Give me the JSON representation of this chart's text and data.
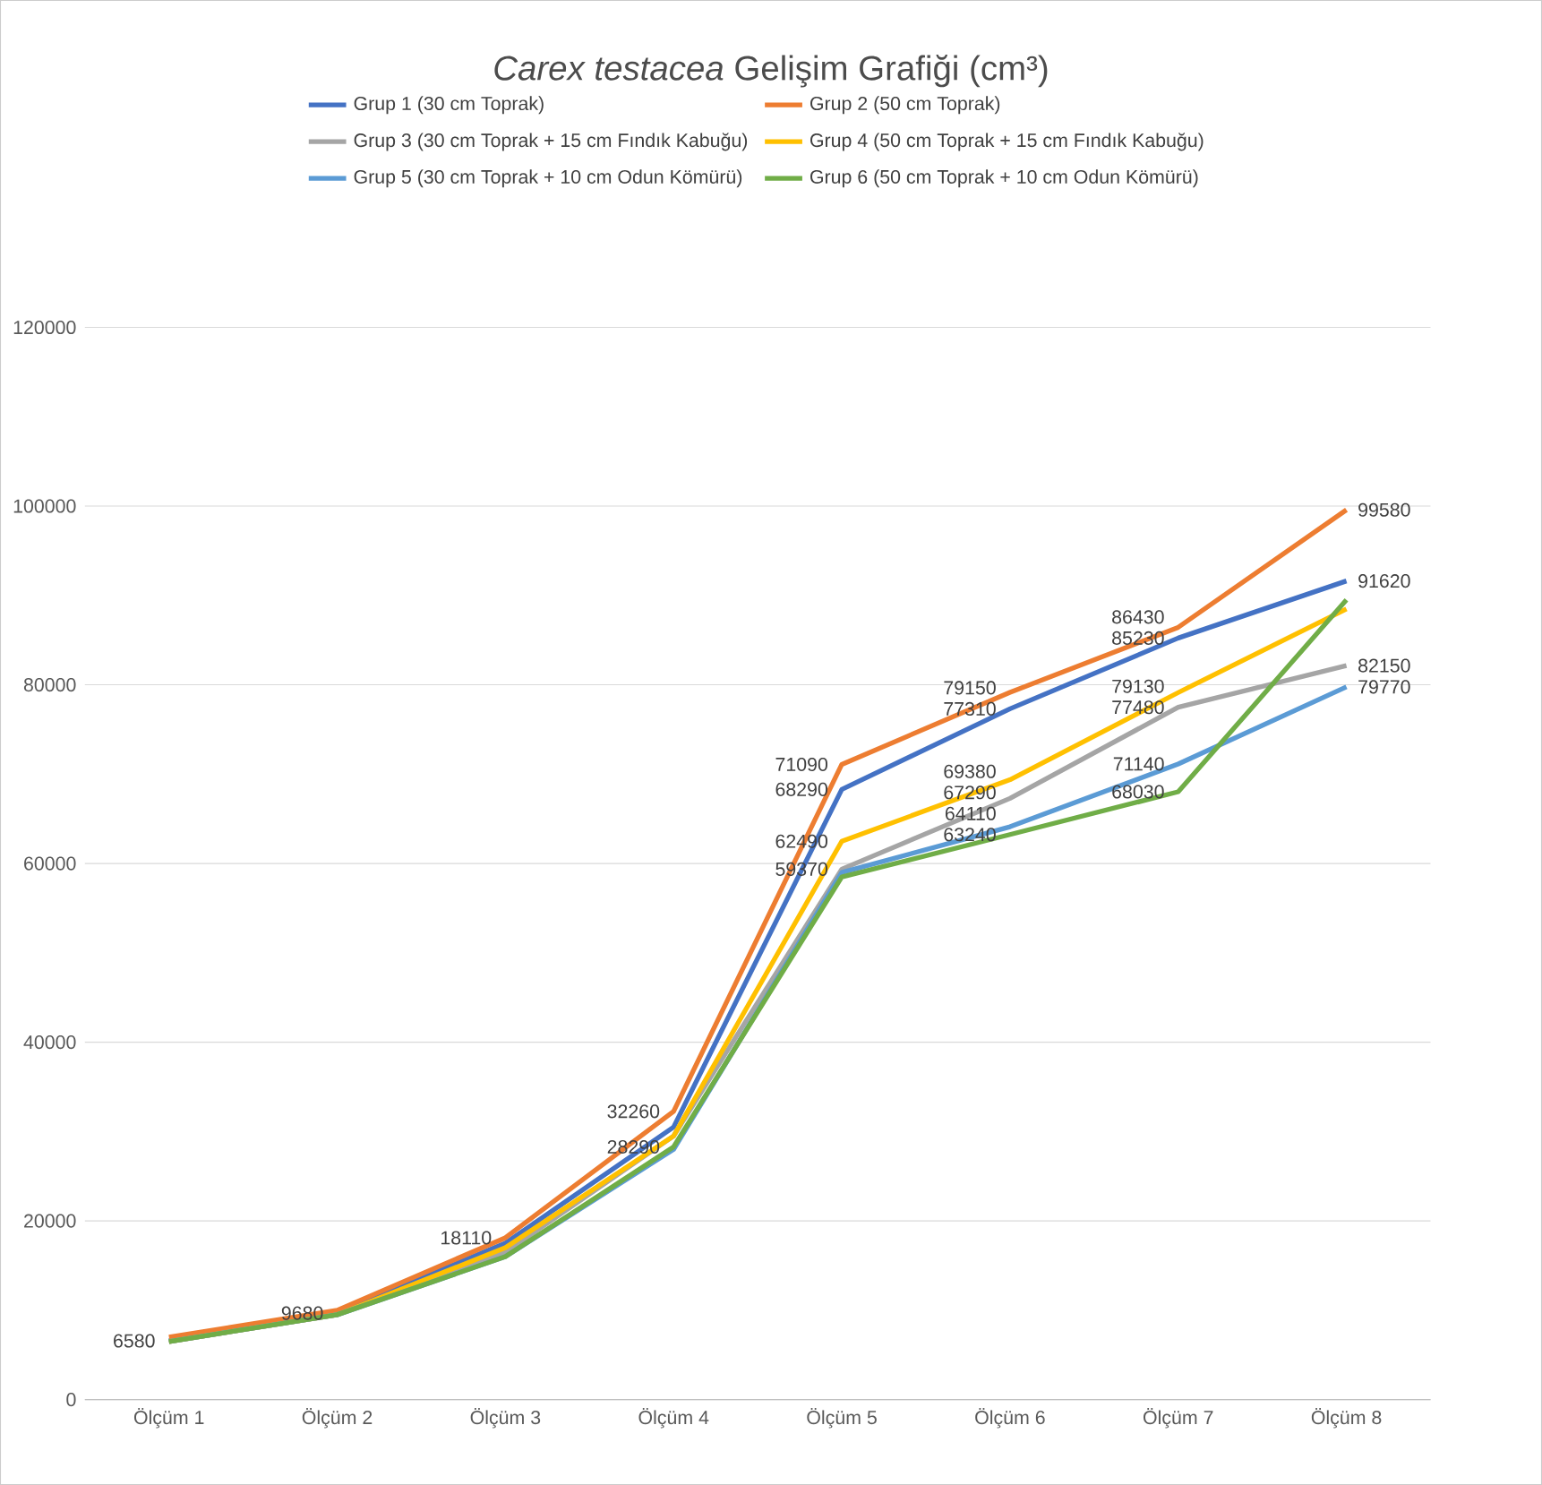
{
  "chart_data": {
    "type": "line",
    "title": "*Carex testacea* Gelişim Grafiği (cm³)",
    "categories": [
      "Ölçüm 1",
      "Ölçüm 2",
      "Ölçüm 3",
      "Ölçüm 4",
      "Ölçüm 5",
      "Ölçüm 6",
      "Ölçüm 7",
      "Ölçüm 8"
    ],
    "series": [
      {
        "name": "Grup 1 (30 cm Toprak)",
        "color": "#4472c4",
        "values": [
          6580,
          9680,
          17500,
          30500,
          68290,
          77310,
          85230,
          91620
        ],
        "value_labels": [
          "6580",
          "9680",
          null,
          null,
          "68290",
          "77310",
          "85230",
          "91620"
        ]
      },
      {
        "name": "Grup 2 (50 cm Toprak)",
        "color": "#ed7d31",
        "values": [
          7000,
          10000,
          18110,
          32260,
          71090,
          79150,
          86430,
          99580
        ],
        "value_labels": [
          null,
          null,
          "18110",
          "32260",
          "71090",
          "79150",
          "86430",
          "99580"
        ]
      },
      {
        "name": "Grup 3 (30 cm Toprak + 15 cm Fındık Kabuğu)",
        "color": "#a5a5a5",
        "values": [
          6500,
          9500,
          16500,
          29500,
          59370,
          67290,
          77480,
          82150
        ],
        "value_labels": [
          null,
          null,
          null,
          null,
          "59370",
          "67290",
          "77480",
          "82150"
        ]
      },
      {
        "name": "Grup 4 (50 cm Toprak + 15 cm Fındık Kabuğu)",
        "color": "#ffc000",
        "values": [
          6500,
          9500,
          17000,
          29500,
          62490,
          69380,
          79130,
          88500
        ],
        "value_labels": [
          null,
          null,
          null,
          null,
          "62490",
          "69380",
          "79130",
          null
        ]
      },
      {
        "name": "Grup 5 (30 cm Toprak + 10 cm Odun Kömürü)",
        "color": "#5b9bd5",
        "values": [
          6500,
          9500,
          16000,
          28000,
          59000,
          64110,
          71140,
          79770
        ],
        "value_labels": [
          null,
          null,
          null,
          null,
          null,
          "64110",
          "71140",
          "79770"
        ]
      },
      {
        "name": "Grup 6 (50 cm Toprak + 10 cm Odun Kömürü)",
        "color": "#70ad47",
        "values": [
          6500,
          9500,
          16000,
          28290,
          58500,
          63240,
          68030,
          89500
        ],
        "value_labels": [
          null,
          null,
          null,
          "28290",
          null,
          "63240",
          "68030",
          null
        ]
      }
    ],
    "ylim": [
      0,
      120000
    ],
    "yticks": [
      0,
      20000,
      40000,
      60000,
      80000,
      100000,
      120000
    ],
    "grid": "y",
    "legend": "top",
    "marker": "none",
    "line_style": "solid"
  }
}
